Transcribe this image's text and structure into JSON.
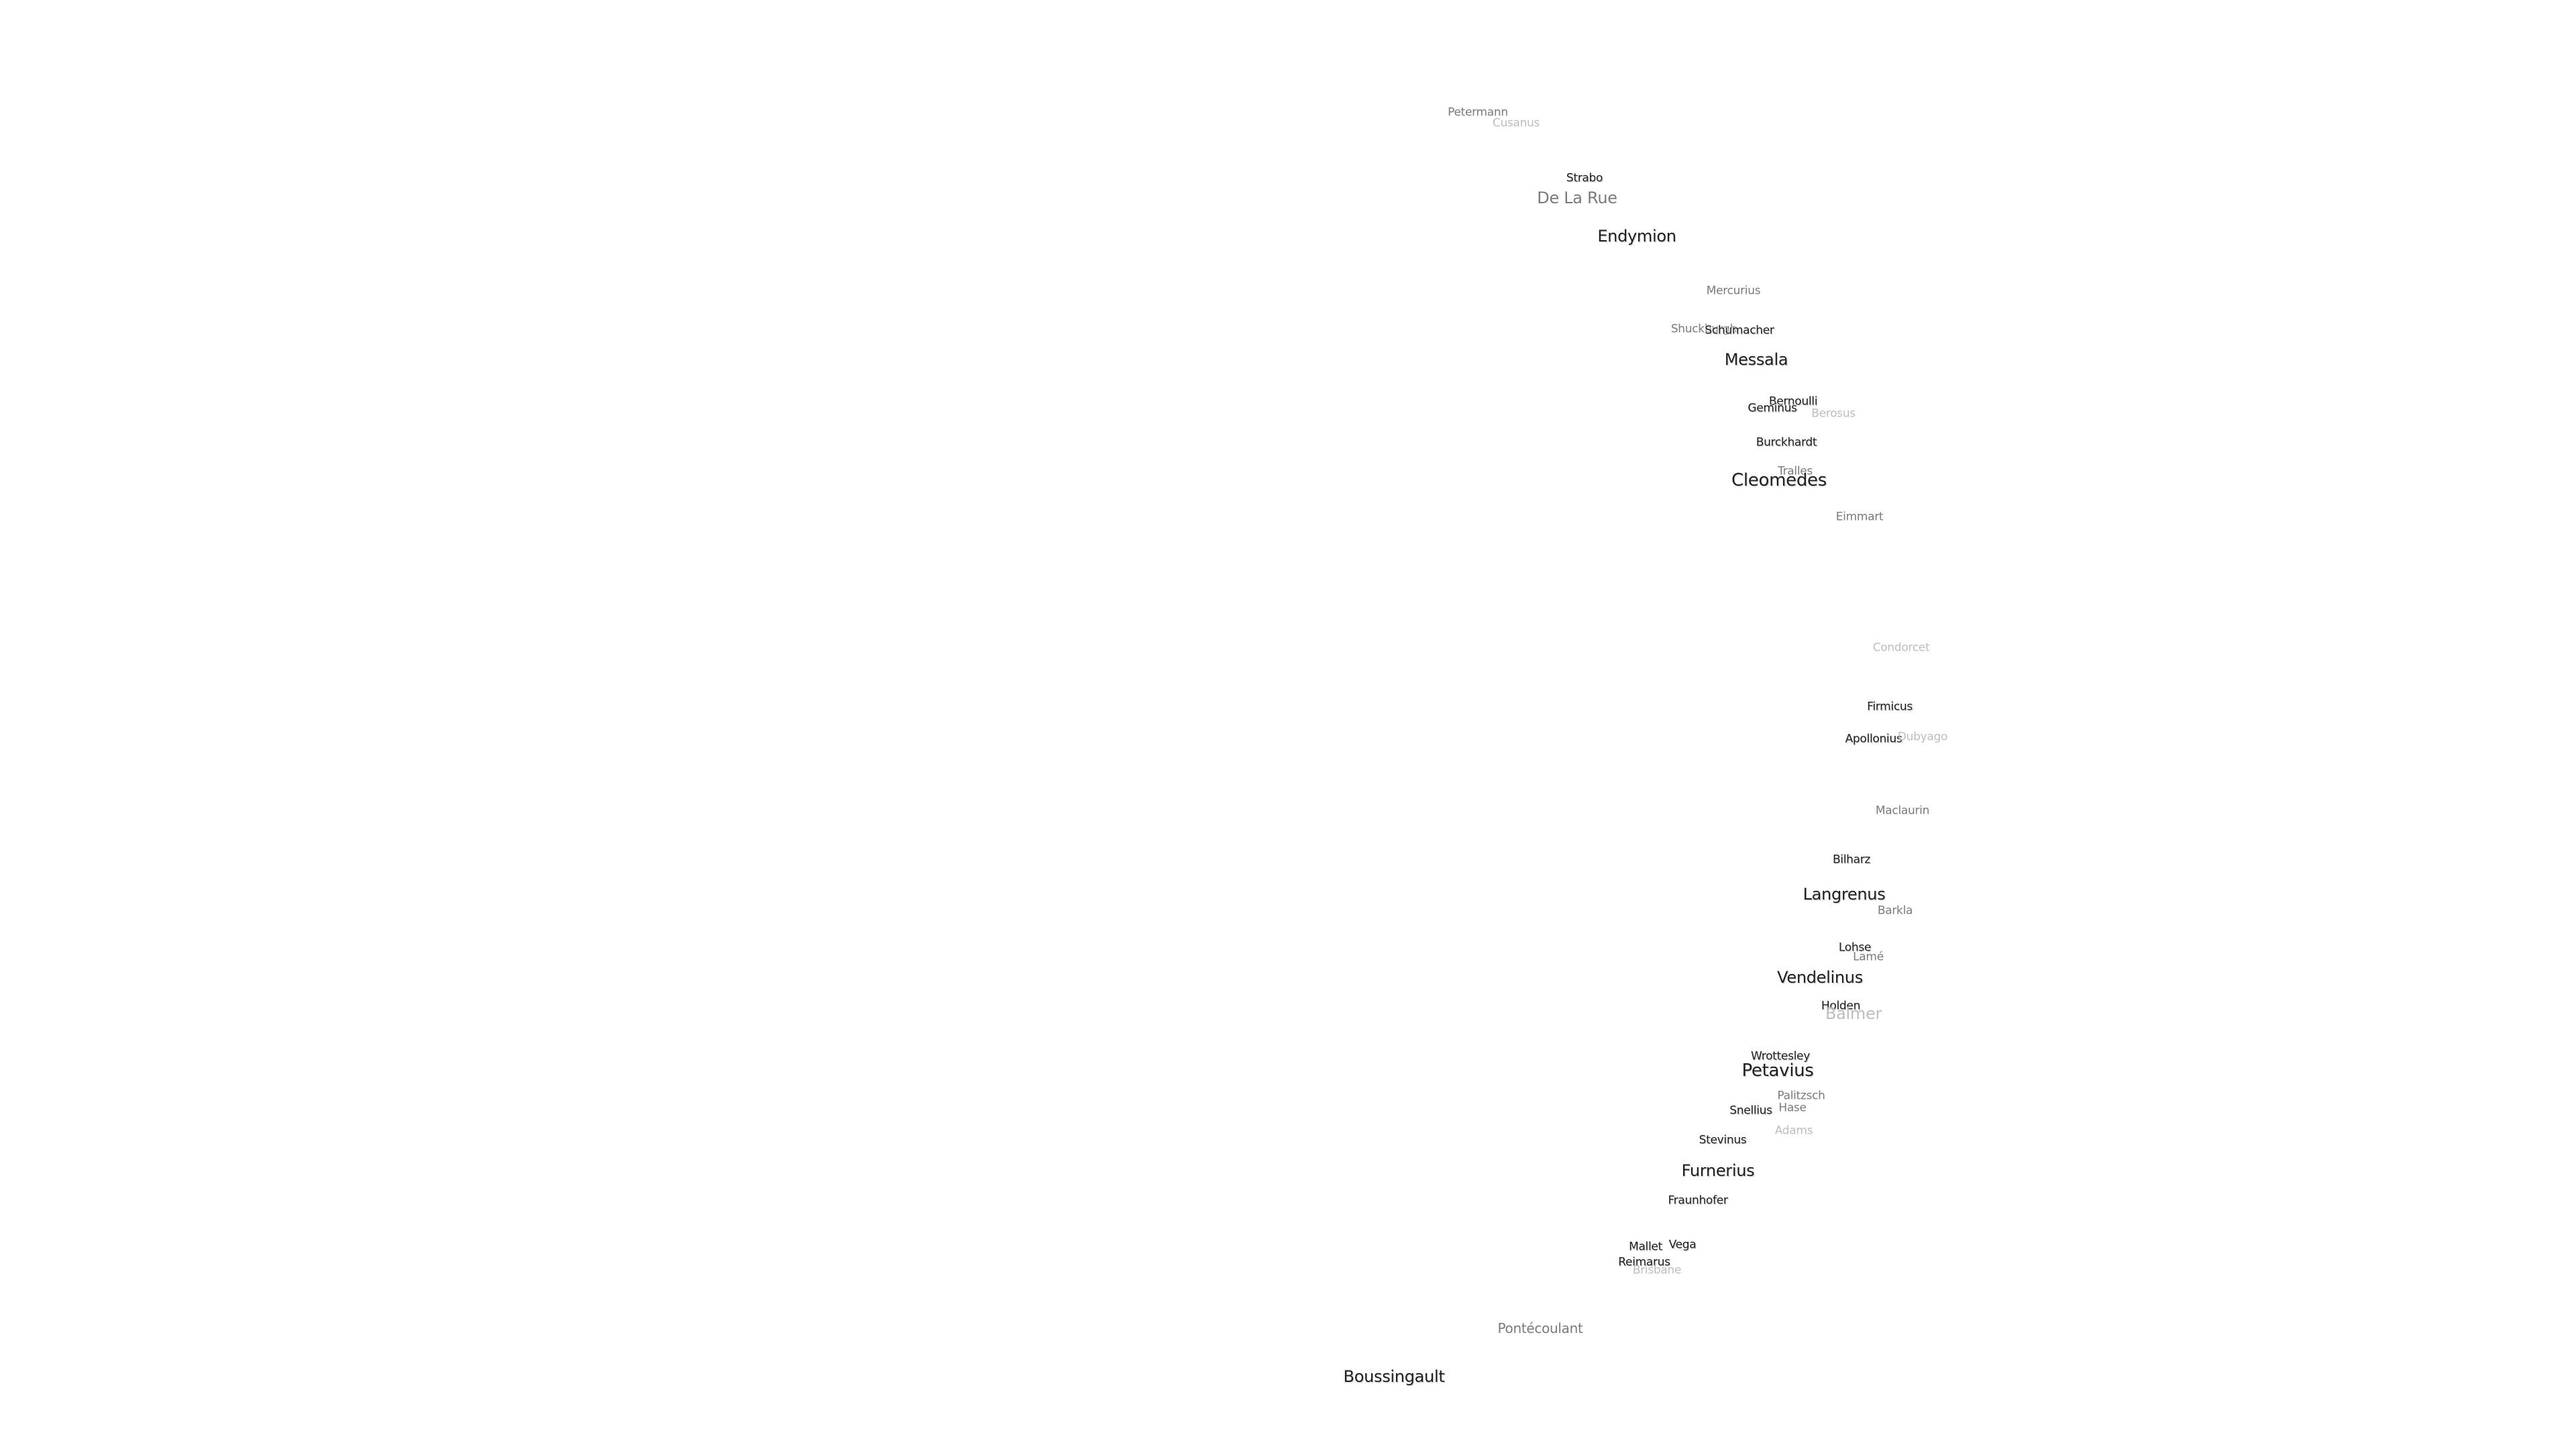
{
  "labels": [
    {
      "name": "Petermann",
      "tier": 2,
      "size": "s"
    },
    {
      "name": "Cusanus",
      "tier": 3,
      "size": "s"
    },
    {
      "name": "Strabo",
      "tier": 1,
      "size": "s"
    },
    {
      "name": "De La Rue",
      "tier": 2,
      "size": "l"
    },
    {
      "name": "Endymion",
      "tier": 1,
      "size": "l"
    },
    {
      "name": "Mercurius",
      "tier": 2,
      "size": "s"
    },
    {
      "name": "Shuckburgh",
      "tier": 2,
      "size": "s"
    },
    {
      "name": "Schumacher",
      "tier": 1,
      "size": "s"
    },
    {
      "name": "Messala",
      "tier": 1,
      "size": "l"
    },
    {
      "name": "Bernoulli",
      "tier": 1,
      "size": "s"
    },
    {
      "name": "Geminus",
      "tier": 1,
      "size": "s"
    },
    {
      "name": "Berosus",
      "tier": 3,
      "size": "s"
    },
    {
      "name": "Burckhardt",
      "tier": 1,
      "size": "s"
    },
    {
      "name": "Tralles",
      "tier": 2,
      "size": "s"
    },
    {
      "name": "Cleomedes",
      "tier": 1,
      "size": "xl"
    },
    {
      "name": "Eimmart",
      "tier": 2,
      "size": "s"
    },
    {
      "name": "Condorcet",
      "tier": 3,
      "size": "s"
    },
    {
      "name": "Firmicus",
      "tier": 1,
      "size": "s"
    },
    {
      "name": "Apollonius",
      "tier": 1,
      "size": "s"
    },
    {
      "name": "Dubyago",
      "tier": 3,
      "size": "s"
    },
    {
      "name": "Maclaurin",
      "tier": 2,
      "size": "s"
    },
    {
      "name": "Bilharz",
      "tier": 1,
      "size": "s"
    },
    {
      "name": "Langrenus",
      "tier": 1,
      "size": "l"
    },
    {
      "name": "Barkla",
      "tier": 2,
      "size": "s"
    },
    {
      "name": "Lohse",
      "tier": 1,
      "size": "s"
    },
    {
      "name": "Lamé",
      "tier": 2,
      "size": "s"
    },
    {
      "name": "Vendelinus",
      "tier": 1,
      "size": "l"
    },
    {
      "name": "Holden",
      "tier": 1,
      "size": "s"
    },
    {
      "name": "Balmer",
      "tier": 3,
      "size": "l"
    },
    {
      "name": "Wrottesley",
      "tier": 1,
      "size": "s"
    },
    {
      "name": "Petavius",
      "tier": 1,
      "size": "xl"
    },
    {
      "name": "Palitzsch",
      "tier": 2,
      "size": "s"
    },
    {
      "name": "Hase",
      "tier": 2,
      "size": "s"
    },
    {
      "name": "Snellius",
      "tier": 1,
      "size": "s"
    },
    {
      "name": "Adams",
      "tier": 3,
      "size": "s"
    },
    {
      "name": "Stevinus",
      "tier": 1,
      "size": "s"
    },
    {
      "name": "Furnerius",
      "tier": 1,
      "size": "l"
    },
    {
      "name": "Fraunhofer",
      "tier": 1,
      "size": "s"
    },
    {
      "name": "Mallet",
      "tier": 1,
      "size": "s"
    },
    {
      "name": "Vega",
      "tier": 1,
      "size": "s"
    },
    {
      "name": "Reimarus",
      "tier": 1,
      "size": "s"
    },
    {
      "name": "Brisbane",
      "tier": 3,
      "size": "s"
    },
    {
      "name": "Pontécoulant",
      "tier": 2,
      "size": "m"
    },
    {
      "name": "Boussingault",
      "tier": 1,
      "size": "l"
    }
  ]
}
